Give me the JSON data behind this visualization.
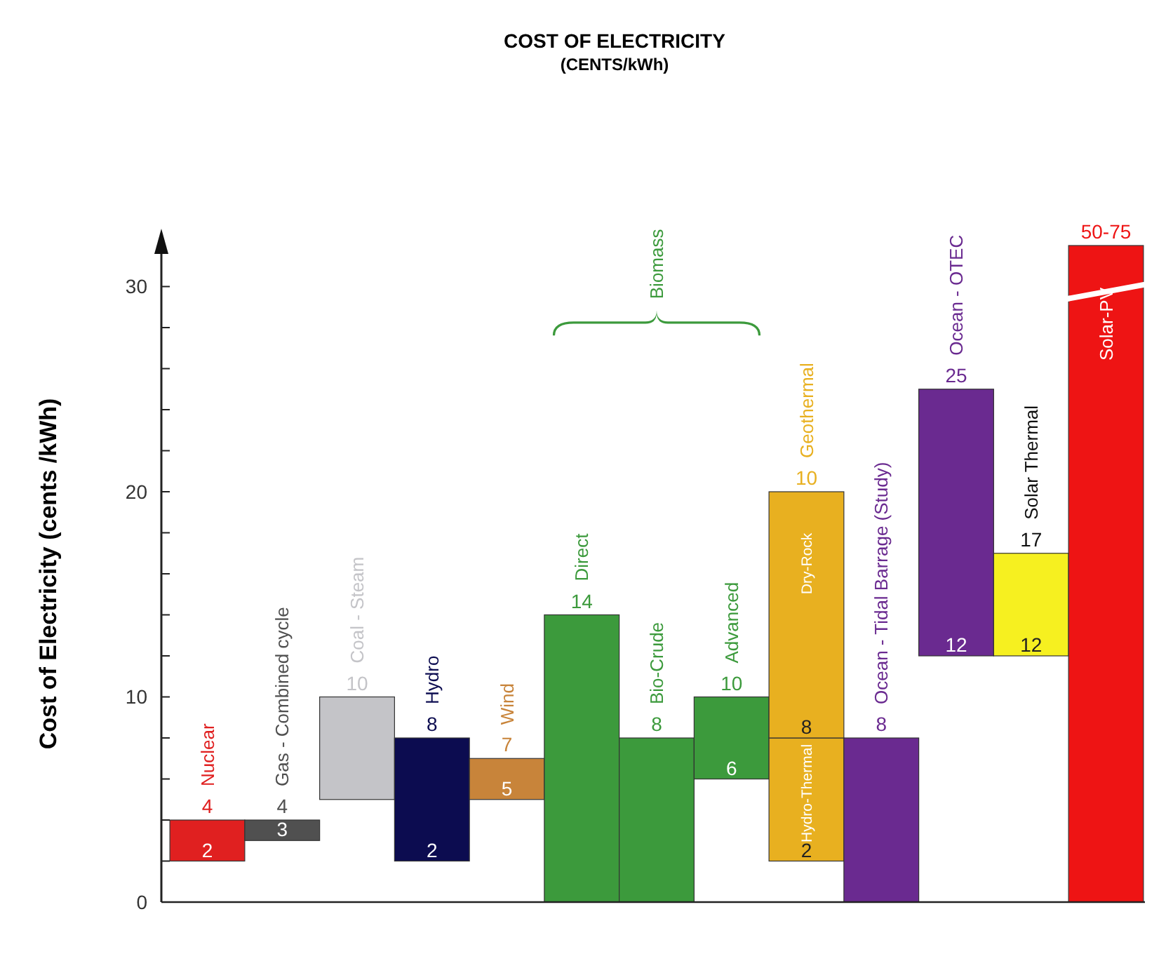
{
  "chart_data": {
    "type": "bar",
    "title": "COST OF ELECTRICITY",
    "subtitle": "(CENTS/kWh)",
    "ylabel": "Cost of Electricity (cents /kWh)",
    "categories": [
      "Nuclear",
      "Gas - Combined cycle",
      "Coal - Steam",
      "Hydro",
      "Wind",
      "Direct",
      "Bio-Crude",
      "Advanced",
      "Geothermal",
      "Ocean - Tidal Barrage (Study)",
      "Ocean - OTEC",
      "Solar Thermal",
      "Solar-PV"
    ],
    "series": [
      {
        "values": [
          2,
          1,
          5,
          6,
          2,
          14,
          8,
          4,
          6,
          8,
          13,
          5,
          32
        ],
        "base": [
          2,
          3,
          5,
          2,
          5,
          0,
          0,
          6,
          2,
          0,
          12,
          12,
          0
        ],
        "colors": [
          "#e02020",
          "#505050",
          "#c4c4c8",
          "#0c0c50",
          "#c8843a",
          "#3c9a3c",
          "#3c9a3c",
          "#3c9a3c",
          "#e8b020",
          "#6a2a90",
          "#6a2a90",
          "#f6f020",
          "#ee1414"
        ]
      },
      {
        "values": [
          null,
          null,
          null,
          null,
          null,
          null,
          null,
          null,
          12,
          null,
          null,
          null,
          null
        ],
        "base": [
          null,
          null,
          null,
          null,
          null,
          null,
          null,
          null,
          8,
          null,
          null,
          null,
          null
        ],
        "colors": [
          null,
          null,
          null,
          null,
          null,
          null,
          null,
          null,
          "#e8b020",
          null,
          null,
          null,
          null
        ]
      }
    ],
    "ylim": [
      0,
      32
    ],
    "yticks": [
      0,
      {
        "value": 2,
        "label": null
      },
      {
        "value": 4,
        "label": null
      },
      {
        "value": 6,
        "label": null
      },
      {
        "value": 8,
        "label": null
      },
      10,
      {
        "value": 12,
        "label": null
      },
      {
        "value": 14,
        "label": null
      },
      {
        "value": 16,
        "label": null
      },
      {
        "value": 18,
        "label": null
      },
      20,
      {
        "value": 22,
        "label": null
      },
      {
        "value": 24,
        "label": null
      },
      {
        "value": 26,
        "label": null
      },
      {
        "value": 28,
        "label": null
      },
      30
    ],
    "grid": false,
    "annotations": [
      {
        "text": "4",
        "x": "Nuclear",
        "y": 4
      },
      {
        "text": "2",
        "x": "Nuclear",
        "y": 2
      },
      {
        "text": "4",
        "x": "Gas - Combined cycle",
        "y": 4
      },
      {
        "text": "3",
        "x": "Gas - Combined cycle",
        "y": 3
      },
      {
        "text": "10",
        "x": "Coal - Steam",
        "y": 10
      },
      {
        "text": "8",
        "x": "Hydro",
        "y": 8
      },
      {
        "text": "2",
        "x": "Hydro",
        "y": 2
      },
      {
        "text": "7",
        "x": "Wind",
        "y": 7
      },
      {
        "text": "5",
        "x": "Wind",
        "y": 5
      },
      {
        "text": "14",
        "x": "Direct",
        "y": 14
      },
      {
        "text": "8",
        "x": "Bio-Crude",
        "y": 8
      },
      {
        "text": "10",
        "x": "Advanced",
        "y": 10
      },
      {
        "text": "6",
        "x": "Advanced",
        "y": 6
      },
      {
        "text": "10",
        "x": "Geothermal",
        "y": 20
      },
      {
        "text": "8",
        "x": "Geothermal",
        "y": 8
      },
      {
        "text": "2",
        "x": "Geothermal",
        "y": 2
      },
      "Dry-Rock",
      "Hydro-Thermal",
      {
        "text": "8",
        "x": "Ocean - Tidal Barrage (Study)",
        "y": 8
      },
      {
        "text": "25",
        "x": "Ocean - OTEC",
        "y": 25
      },
      {
        "text": "12",
        "x": "Ocean - OTEC",
        "y": 12
      },
      {
        "text": "17",
        "x": "Solar Thermal",
        "y": 17
      },
      {
        "text": "12",
        "x": "Solar Thermal",
        "y": 12
      },
      {
        "text": "50-75",
        "x": "Solar-PV",
        "y": 32
      },
      "Biomass"
    ]
  }
}
